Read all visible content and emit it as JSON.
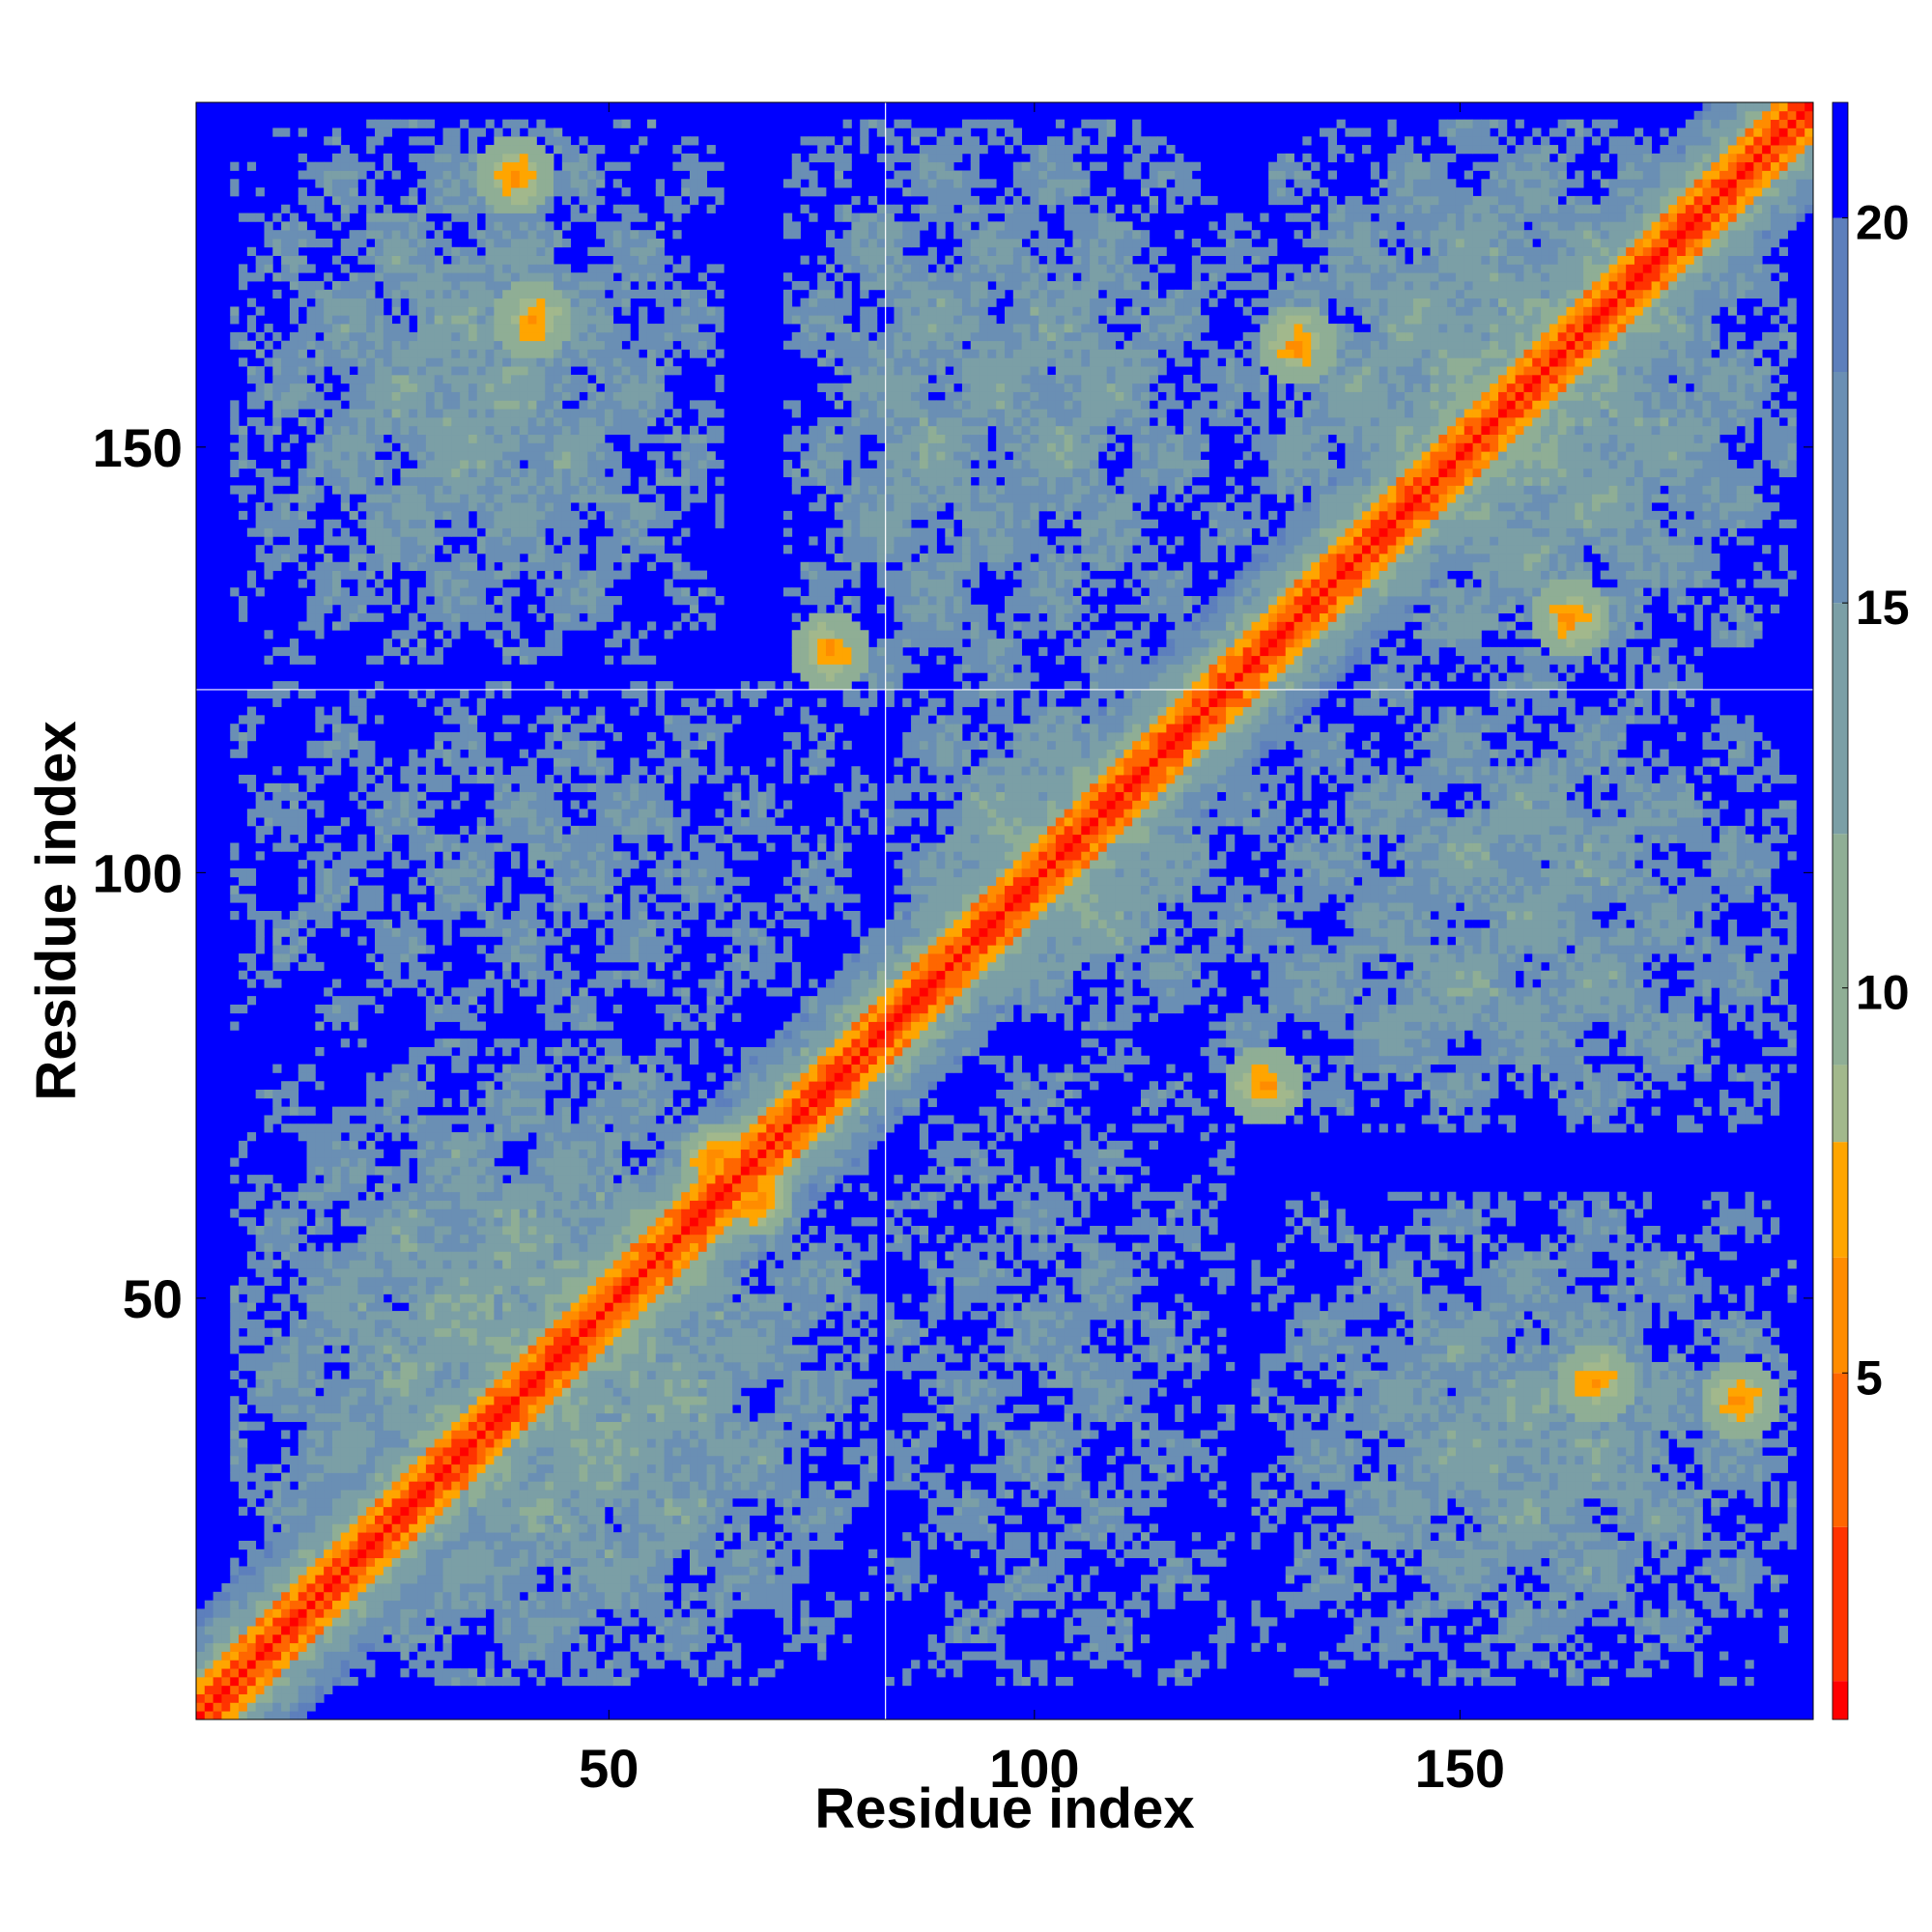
{
  "chart_data": {
    "type": "heatmap",
    "title": "",
    "xlabel": "Residue index",
    "ylabel": "Residue index",
    "n_residues": 190,
    "xlim": [
      1,
      190
    ],
    "ylim": [
      1,
      190
    ],
    "x_ticks": [
      50,
      100,
      150
    ],
    "y_ticks": [
      50,
      100,
      150
    ],
    "x_tick_labels": [
      "50",
      "100",
      "150"
    ],
    "y_tick_labels": [
      "50",
      "100",
      "150"
    ],
    "domain_boundaries": [
      82,
      122
    ],
    "colorbar": {
      "range": [
        0.5,
        21.5
      ],
      "ticks": [
        5,
        10,
        15,
        20
      ],
      "tick_labels": [
        "5",
        "10",
        "15",
        "20"
      ],
      "palette": [
        {
          "value": 1,
          "color": "#ff0000"
        },
        {
          "value": 3,
          "color": "#ff3300"
        },
        {
          "value": 5,
          "color": "#ff6600"
        },
        {
          "value": 6.5,
          "color": "#ff8c00"
        },
        {
          "value": 8,
          "color": "#ffa500"
        },
        {
          "value": 9,
          "color": "#a2b88c"
        },
        {
          "value": 12,
          "color": "#8fae95"
        },
        {
          "value": 15,
          "color": "#7b9fa6"
        },
        {
          "value": 18,
          "color": "#6a8fb4"
        },
        {
          "value": 20,
          "color": "#5d7fbc"
        },
        {
          "value": 21.5,
          "color": "#0000ff"
        }
      ]
    },
    "contact_blocks": [
      {
        "x": [
          5,
          80
        ],
        "y": [
          5,
          80
        ],
        "strength": 0.55
      },
      {
        "x": [
          82,
          122
        ],
        "y": [
          82,
          122
        ],
        "strength": 0.55
      },
      {
        "x": [
          122,
          188
        ],
        "y": [
          122,
          188
        ],
        "strength": 0.55
      },
      {
        "x": [
          5,
          62
        ],
        "y": [
          125,
          188
        ],
        "strength": 0.4
      },
      {
        "x": [
          70,
          100
        ],
        "y": [
          120,
          188
        ],
        "strength": 0.35
      },
      {
        "x": [
          122,
          188
        ],
        "y": [
          5,
          62
        ],
        "strength": 0.4
      },
      {
        "x": [
          120,
          188
        ],
        "y": [
          70,
          100
        ],
        "strength": 0.35
      },
      {
        "x": [
          82,
          122
        ],
        "y": [
          5,
          80
        ],
        "strength": 0.2
      },
      {
        "x": [
          5,
          80
        ],
        "y": [
          82,
          122
        ],
        "strength": 0.2
      },
      {
        "x": [
          82,
          122
        ],
        "y": [
          122,
          188
        ],
        "strength": 0.35
      },
      {
        "x": [
          122,
          188
        ],
        "y": [
          82,
          122
        ],
        "strength": 0.35
      }
    ],
    "hotspots": [
      {
        "x": 38,
        "y": 182,
        "value": 5
      },
      {
        "x": 40,
        "y": 165,
        "value": 5
      },
      {
        "x": 75,
        "y": 126,
        "value": 5
      },
      {
        "x": 130,
        "y": 162,
        "value": 5
      },
      {
        "x": 162,
        "y": 130,
        "value": 5
      },
      {
        "x": 165,
        "y": 40,
        "value": 5
      },
      {
        "x": 182,
        "y": 38,
        "value": 5
      },
      {
        "x": 126,
        "y": 75,
        "value": 5
      },
      {
        "x": 62,
        "y": 66,
        "value": 4
      },
      {
        "x": 66,
        "y": 62,
        "value": 4
      }
    ]
  }
}
